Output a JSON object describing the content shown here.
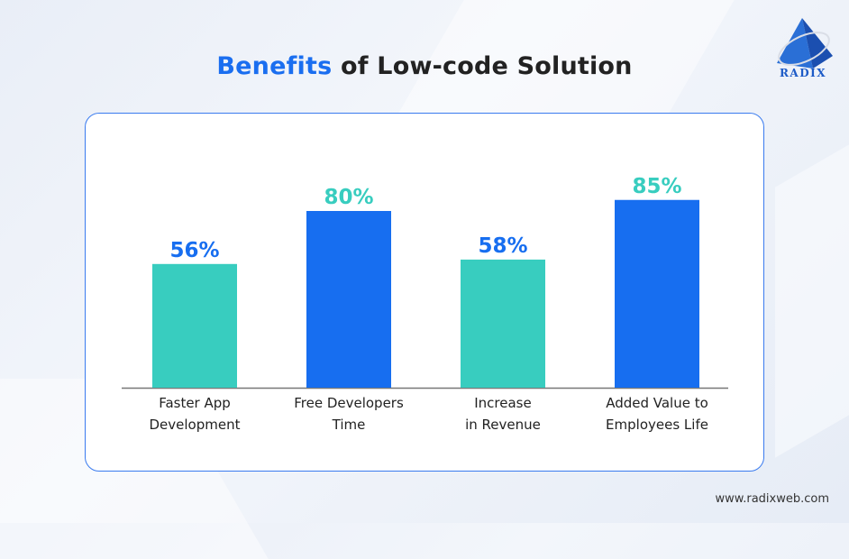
{
  "chart_data": {
    "type": "bar",
    "title_highlight": "Benefits",
    "title_rest": " of Low-code Solution",
    "categories": [
      [
        "Faster App",
        "Development"
      ],
      [
        "Free Developers",
        "Time"
      ],
      [
        "Increase",
        "in Revenue"
      ],
      [
        "Added Value to",
        "Employees Life"
      ]
    ],
    "values": [
      56,
      80,
      58,
      85
    ],
    "value_labels": [
      "56%",
      "80%",
      "58%",
      "85%"
    ],
    "bar_colors": [
      "#38cdbf",
      "#176ef0",
      "#38cdbf",
      "#176ef0"
    ],
    "label_colors": [
      "#176ef0",
      "#38cdbf",
      "#176ef0",
      "#38cdbf"
    ],
    "xlabel": "",
    "ylabel": "",
    "ylim": [
      0,
      100
    ],
    "grid": false
  },
  "brand": {
    "logo_text": "RADIX",
    "website": "www.radixweb.com"
  }
}
